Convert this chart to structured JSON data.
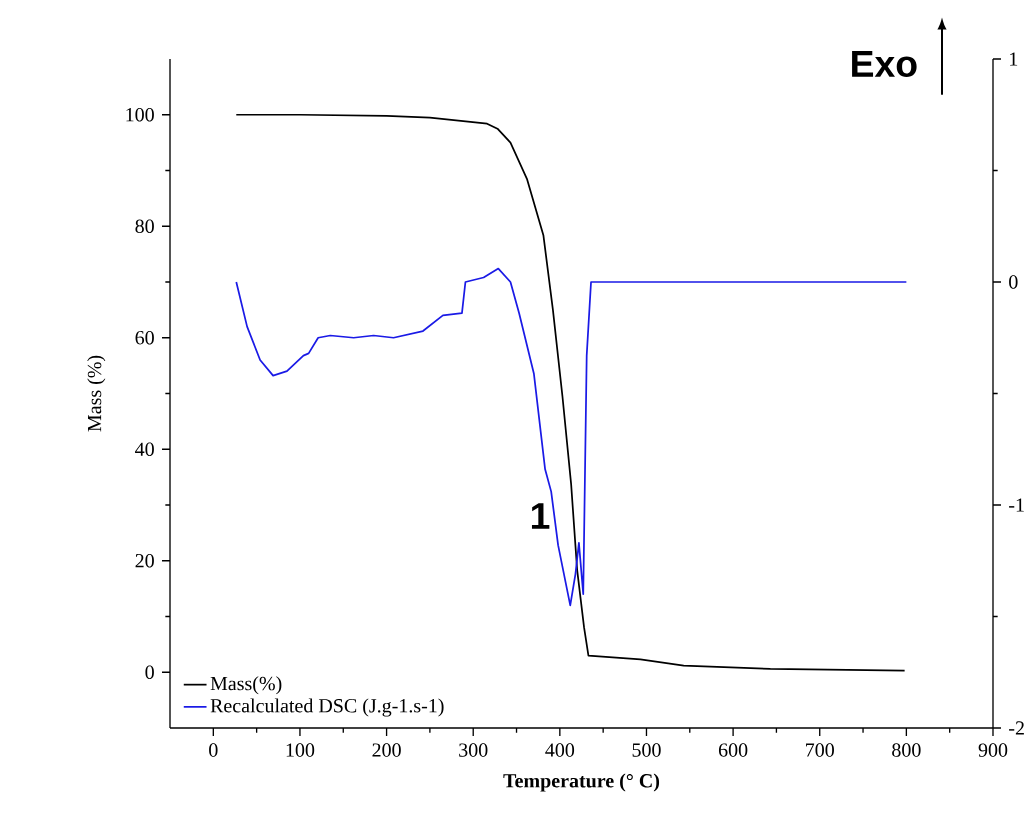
{
  "chart_data": {
    "type": "line",
    "xlabel": "Temperature (° C)",
    "ylabel": "Mass (%)",
    "xlim": [
      -50,
      900
    ],
    "xticks": [
      0,
      100,
      200,
      300,
      400,
      500,
      600,
      700,
      800,
      900
    ],
    "ylim": [
      -10,
      110
    ],
    "yticks": [
      0,
      20,
      40,
      60,
      80,
      100
    ],
    "y2lim": [
      -2,
      1
    ],
    "y2ticks": [
      -2,
      -1,
      0,
      1
    ],
    "legend": "bottom left",
    "annotations": [
      "Exo",
      "1"
    ],
    "series": [
      {
        "name": "Mass(%)",
        "color": "#000000",
        "x": [
          26.5,
          100,
          200,
          250,
          316,
          328,
          343,
          362,
          381,
          392,
          403,
          413,
          420,
          428,
          433,
          493,
          543,
          643,
          798
        ],
        "values": [
          100,
          100,
          99.8,
          99.5,
          98.4,
          97.5,
          95,
          88.5,
          78.4,
          65,
          49.5,
          33.8,
          18.3,
          8,
          3,
          2.3,
          1.2,
          0.6,
          0.3
        ]
      },
      {
        "name": "Recalculated DSC (J.g-1.s-1)",
        "color": "#1a1ae6",
        "axis": "y2",
        "x": [
          26.5,
          39,
          54,
          69,
          85,
          104,
          110,
          121,
          135,
          162,
          185,
          208,
          242,
          265,
          287,
          291,
          312,
          329,
          343,
          353,
          370,
          383,
          390,
          398,
          412,
          418,
          422,
          427,
          431,
          436,
          800
        ],
        "values": [
          0,
          -0.2,
          -0.35,
          -0.42,
          -0.4,
          -0.33,
          -0.32,
          -0.25,
          -0.24,
          -0.25,
          -0.24,
          -0.25,
          -0.22,
          -0.15,
          -0.14,
          0,
          0.02,
          0.06,
          0,
          -0.14,
          -0.41,
          -0.84,
          -0.94,
          -1.18,
          -1.45,
          -1.31,
          -1.17,
          -1.4,
          -0.33,
          0,
          0
        ]
      }
    ]
  }
}
